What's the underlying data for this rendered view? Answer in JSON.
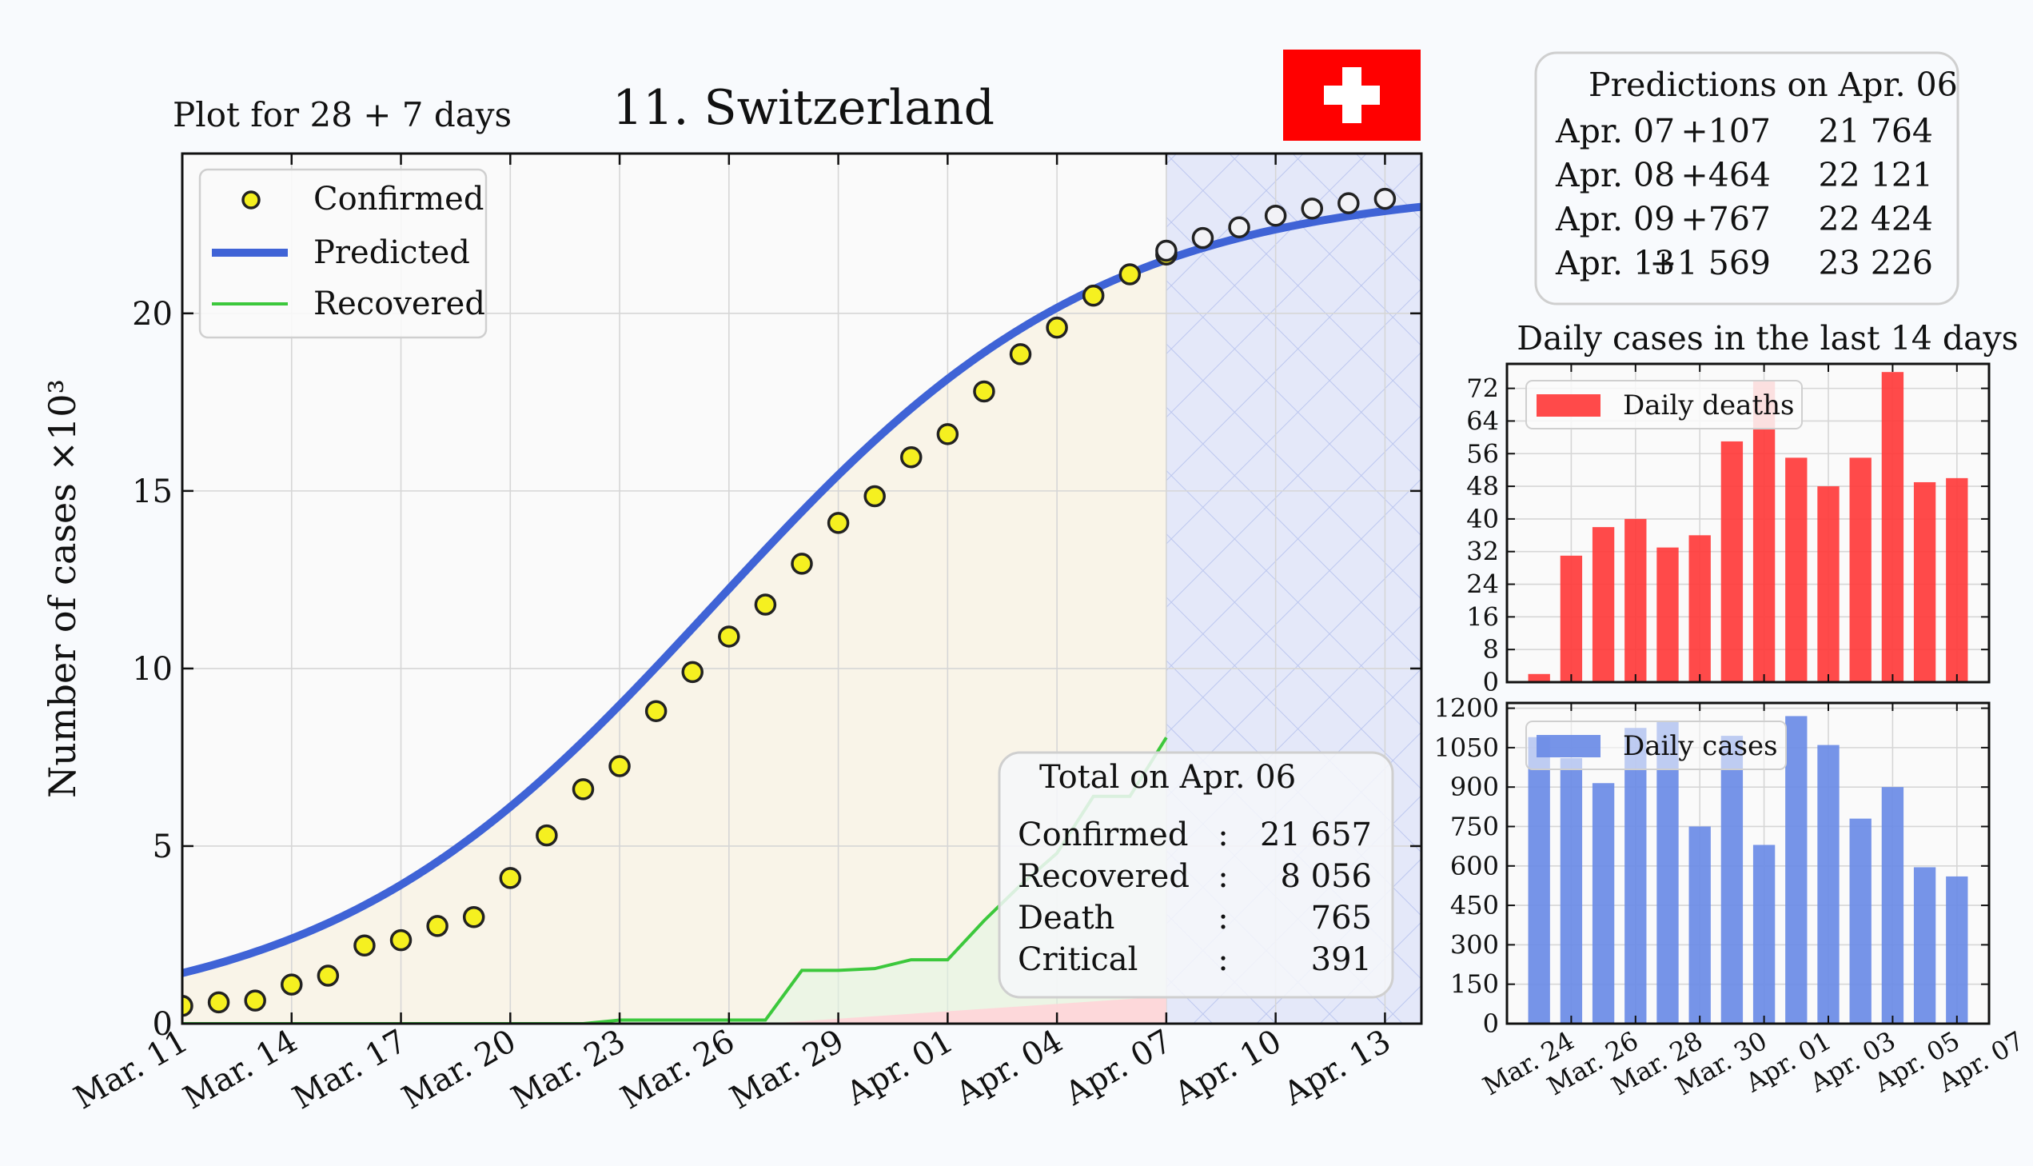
{
  "header": {
    "subtitle": "Plot for 28 + 7 days",
    "title": "11. Switzerland"
  },
  "flag": {
    "name": "swiss-flag",
    "red": "#ff0000",
    "white": "#ffffff"
  },
  "predictions": {
    "title": "Predictions on Apr. 06",
    "rows": [
      {
        "date": "Apr. 07",
        "delta": "+107",
        "total": "21 764"
      },
      {
        "date": "Apr. 08",
        "delta": "+464",
        "total": "22 121"
      },
      {
        "date": "Apr. 09",
        "delta": "+767",
        "total": "22 424"
      },
      {
        "date": "Apr. 13",
        "delta": "+1 569",
        "total": "23 226"
      }
    ]
  },
  "totals": {
    "title": "Total on Apr. 06",
    "rows": [
      {
        "label": "Confirmed",
        "sep": ":",
        "value": "21 657"
      },
      {
        "label": "Recovered",
        "sep": ":",
        "value": "8 056"
      },
      {
        "label": "Death",
        "sep": ":",
        "value": "765"
      },
      {
        "label": "Critical",
        "sep": ":",
        "value": "391"
      }
    ]
  },
  "colors": {
    "predicted": "#3f63d6",
    "confirmed_fill": "#f5f020",
    "recovered": "#3cc83c",
    "deaths_bar": "#ff3b3b",
    "cases_bar": "#6a8be6",
    "forecast_band": "#dfe4f8"
  },
  "chart_data": [
    {
      "type": "line",
      "ylabel": "Number of cases ×10³",
      "ylim": [
        0,
        24.5
      ],
      "yticks": [
        0,
        5,
        10,
        15,
        20
      ],
      "xlim": [
        0,
        34
      ],
      "xtick_positions": [
        0,
        3,
        6,
        9,
        12,
        15,
        18,
        21,
        24,
        27,
        30,
        33
      ],
      "xtick_labels": [
        "Mar. 11",
        "Mar. 14",
        "Mar. 17",
        "Mar. 20",
        "Mar. 23",
        "Mar. 26",
        "Mar. 29",
        "Apr. 01",
        "Apr. 04",
        "Apr. 07",
        "Apr. 10",
        "Apr. 13"
      ],
      "forecast_start": 27,
      "legend": [
        "Confirmed",
        "Predicted",
        "Recovered"
      ],
      "legend_position": "top-left",
      "grid": true,
      "confirmed": [
        0.5,
        0.6,
        0.65,
        1.1,
        1.35,
        2.2,
        2.35,
        2.75,
        3.0,
        4.1,
        5.3,
        6.6,
        7.25,
        8.8,
        9.9,
        10.9,
        11.8,
        12.95,
        14.1,
        14.85,
        15.95,
        16.6,
        17.8,
        18.85,
        19.6,
        20.5,
        21.1,
        21.657
      ],
      "predicted_points": [
        21.764,
        22.121,
        22.424,
        22.75,
        22.95,
        23.1,
        23.226
      ],
      "recovered": [
        0,
        0,
        0,
        0,
        0,
        0,
        0,
        0,
        0,
        0,
        0,
        0,
        0.1,
        0.1,
        0.1,
        0.1,
        0.1,
        1.5,
        1.5,
        1.55,
        1.8,
        1.8,
        2.9,
        3.9,
        4.8,
        6.4,
        6.4,
        8.056
      ],
      "deaths_band_end": 0.765
    },
    {
      "type": "bar",
      "title": "Daily cases in the last 14 days",
      "legend": "Daily deaths",
      "values": [
        2,
        31,
        38,
        40,
        33,
        36,
        59,
        74,
        55,
        48,
        55,
        76,
        49,
        50
      ],
      "ylim": [
        0,
        78
      ],
      "yticks": [
        0,
        8,
        16,
        24,
        32,
        40,
        48,
        56,
        64,
        72
      ]
    },
    {
      "type": "bar",
      "legend": "Daily cases",
      "values": [
        1090,
        1010,
        915,
        1125,
        1150,
        750,
        1095,
        680,
        1170,
        1060,
        780,
        900,
        595,
        560
      ],
      "ylim": [
        0,
        1220
      ],
      "yticks": [
        0,
        150,
        300,
        450,
        600,
        750,
        900,
        1050,
        1200
      ],
      "xtick_labels": [
        "Mar. 24",
        "Mar. 26",
        "Mar. 28",
        "Mar. 30",
        "Apr. 01",
        "Apr. 03",
        "Apr. 05",
        "Apr. 07"
      ]
    }
  ]
}
